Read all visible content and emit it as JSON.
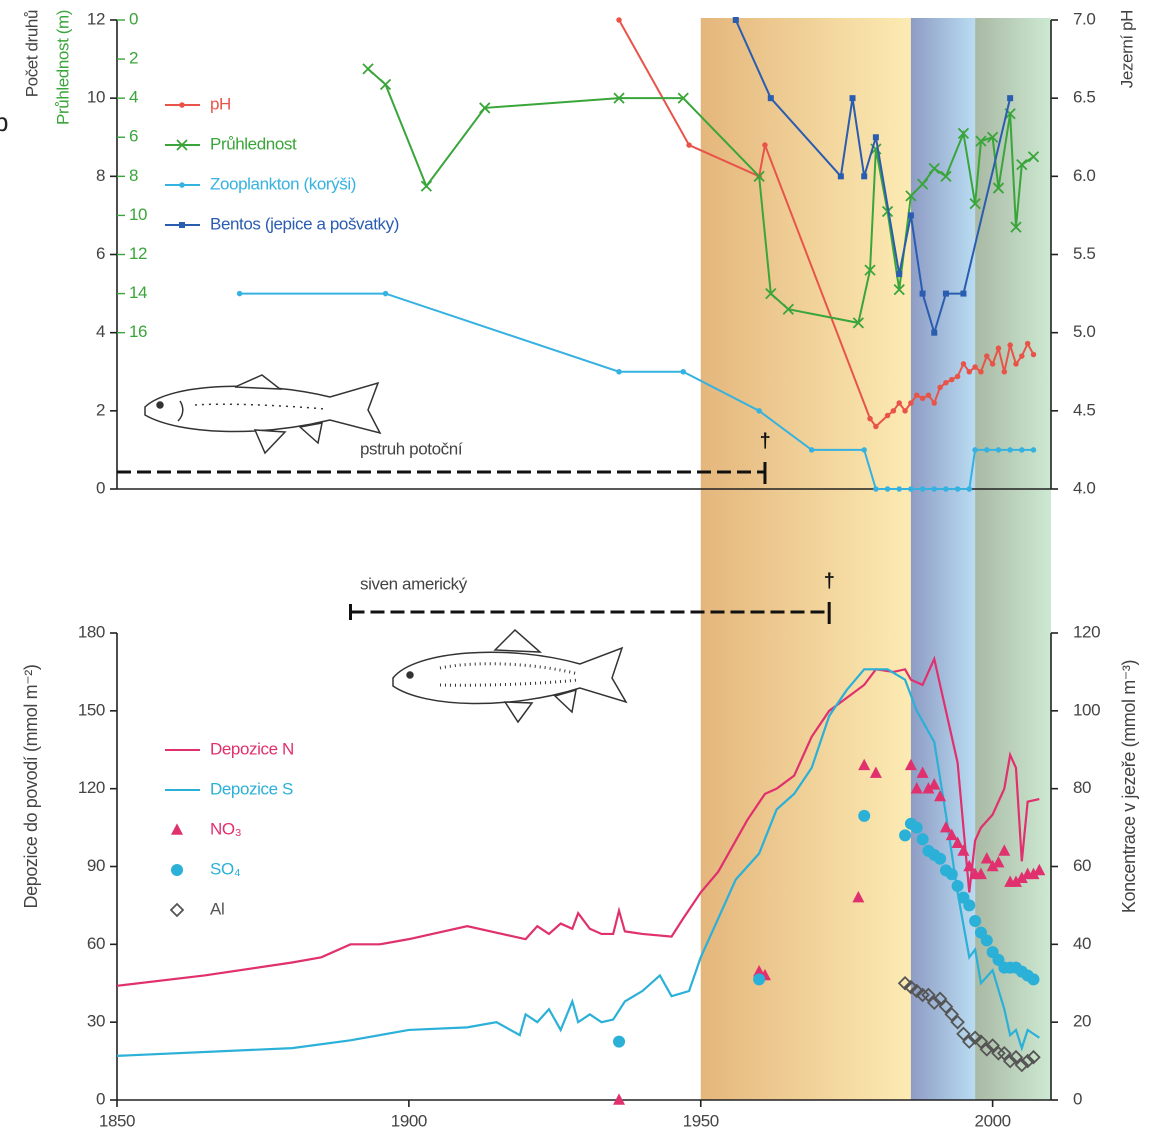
{
  "panel_label": "b",
  "chart_data": [
    {
      "type": "line",
      "xlim": [
        1850,
        2010
      ],
      "ylim": [
        0,
        12
      ],
      "yticks": [
        0,
        2,
        4,
        6,
        8,
        10,
        12
      ],
      "ylabel": "Počet druhů",
      "y3lim": [
        24,
        0
      ],
      "y3ticks": [
        0,
        2,
        4,
        6,
        8,
        10,
        12,
        14,
        16
      ],
      "y3label": "Průhlednost (m)",
      "y3color": "#3aa53a",
      "y2lim": [
        4,
        7
      ],
      "y2ticks": [
        {
          "value": 4,
          "label": "4.0"
        },
        4.5,
        {
          "value": 5,
          "label": "5.0"
        },
        5.5,
        {
          "value": 6,
          "label": "6.0"
        },
        6.5,
        {
          "value": 7,
          "label": "7.0"
        }
      ],
      "y2label": "Jezerní pH",
      "bands": [
        {
          "from": 1950,
          "to": 1986,
          "colors": [
            "#e4b67c",
            "#fcebb3"
          ]
        },
        {
          "from": 1986,
          "to": 1997,
          "colors": [
            "#8e9cc4",
            "#b9dcf2"
          ]
        },
        {
          "from": 1997,
          "to": 2010,
          "colors": [
            "#a9b9a4",
            "#cde9d2"
          ]
        }
      ],
      "annotations": [
        {
          "text": "pstruh potoční",
          "from": 1850,
          "to": 1961,
          "end_mark": "†"
        }
      ],
      "series": [
        {
          "name": "pH",
          "color": "#e8544a",
          "axis": "y2",
          "marker": "dot",
          "line": true,
          "x": [
            1936,
            1948,
            1960,
            1961,
            1979,
            1980,
            1982,
            1983,
            1984,
            1985,
            1986,
            1987,
            1988,
            1989,
            1990,
            1991,
            1992,
            1993,
            1994,
            1995,
            1996,
            1997,
            1998,
            1999,
            2000,
            2001,
            2002,
            2003,
            2004,
            2005,
            2006,
            2007
          ],
          "values": [
            7.0,
            6.2,
            6.0,
            6.2,
            4.45,
            4.4,
            4.47,
            4.5,
            4.55,
            4.5,
            4.55,
            4.6,
            4.58,
            4.6,
            4.55,
            4.65,
            4.68,
            4.7,
            4.72,
            4.8,
            4.75,
            4.78,
            4.75,
            4.85,
            4.8,
            4.9,
            4.75,
            4.92,
            4.8,
            4.85,
            4.93,
            4.86
          ]
        },
        {
          "name": "Průhlednost",
          "color": "#3aa53a",
          "axis": "y3",
          "marker": "x",
          "line": true,
          "x": [
            1893,
            1896,
            1903,
            1913,
            1936,
            1947,
            1960,
            1962,
            1965,
            1977,
            1979,
            1980,
            1982,
            1984,
            1986,
            1988,
            1990,
            1992,
            1995,
            1997,
            1998,
            2000,
            2001,
            2003,
            2004,
            2005,
            2007
          ],
          "values": [
            2.5,
            3.3,
            8.5,
            4.5,
            4.0,
            4.0,
            8.0,
            14.0,
            14.8,
            15.5,
            12.8,
            6.6,
            9.8,
            13.8,
            9.0,
            8.4,
            7.6,
            8.0,
            5.8,
            9.4,
            6.2,
            6.0,
            8.6,
            4.8,
            10.6,
            7.4,
            7.0
          ]
        },
        {
          "name": "Zooplankton (korýši)",
          "color": "#36b2e0",
          "axis": "y",
          "marker": "dot",
          "line": true,
          "x": [
            1871,
            1896,
            1936,
            1947,
            1960,
            1969,
            1978,
            1980,
            1982,
            1984,
            1986,
            1988,
            1990,
            1992,
            1994,
            1996,
            1997,
            1999,
            2001,
            2003,
            2005,
            2007
          ],
          "values": [
            5,
            5,
            3,
            3,
            2,
            1,
            1,
            0,
            0,
            0,
            0,
            0,
            0,
            0,
            0,
            0,
            1,
            1,
            1,
            1,
            1,
            1
          ]
        },
        {
          "name": "Bentos (jepice a pošvatky)",
          "color": "#2a5cb0",
          "axis": "y",
          "marker": "square",
          "line": true,
          "x": [
            1956,
            1962,
            1974,
            1976,
            1978,
            1980,
            1984,
            1986,
            1988,
            1990,
            1992,
            1995,
            2003
          ],
          "values": [
            12,
            10,
            8,
            10,
            8,
            9,
            5.5,
            7,
            5,
            4,
            5,
            5,
            10
          ]
        }
      ]
    },
    {
      "type": "line",
      "xlim": [
        1850,
        2010
      ],
      "xticks": [
        1850,
        1900,
        1950,
        2000
      ],
      "ylim": [
        0,
        180
      ],
      "yticks": [
        0,
        30,
        60,
        90,
        120,
        150,
        180
      ],
      "ylabel": "Depozice do povodí (mmol m⁻²)",
      "y2lim": [
        0,
        120
      ],
      "y2ticks": [
        0,
        20,
        40,
        60,
        80,
        100,
        120
      ],
      "y2label": "Koncentrace v jezeře (mmol m⁻³)",
      "annotations": [
        {
          "text": "siven americký",
          "from": 1890,
          "to": 1972,
          "end_mark": "†"
        }
      ],
      "series": [
        {
          "name": "Depozice N",
          "color": "#e0306e",
          "axis": "y",
          "marker": null,
          "line": true,
          "x": [
            1850,
            1865,
            1880,
            1885,
            1890,
            1895,
            1900,
            1910,
            1920,
            1922,
            1924,
            1926,
            1928,
            1929,
            1931,
            1933,
            1935,
            1936,
            1937,
            1940,
            1945,
            1947,
            1950,
            1953,
            1956,
            1958,
            1961,
            1963,
            1966,
            1969,
            1972,
            1975,
            1978,
            1980,
            1983,
            1985,
            1986,
            1988,
            1990,
            1992,
            1994,
            1995,
            1996,
            1997,
            1998,
            2000,
            2002,
            2003,
            2004,
            2005,
            2006,
            2008
          ],
          "values": [
            44,
            48,
            53,
            55,
            60,
            60,
            62,
            67,
            62,
            67,
            64,
            68,
            66,
            72,
            66,
            64,
            64,
            73,
            65,
            64,
            63,
            70,
            80,
            88,
            100,
            108,
            118,
            120,
            125,
            140,
            150,
            155,
            160,
            166,
            165,
            166,
            162,
            160,
            170,
            150,
            130,
            105,
            80,
            100,
            105,
            110,
            120,
            133,
            128,
            92,
            115,
            116
          ]
        },
        {
          "name": "Depozice S",
          "color": "#2bb0d8",
          "axis": "y",
          "marker": null,
          "line": true,
          "x": [
            1850,
            1880,
            1890,
            1900,
            1910,
            1915,
            1919,
            1920,
            1922,
            1924,
            1926,
            1928,
            1929,
            1931,
            1933,
            1935,
            1937,
            1940,
            1943,
            1945,
            1948,
            1950,
            1953,
            1956,
            1960,
            1963,
            1966,
            1969,
            1972,
            1975,
            1978,
            1982,
            1985,
            1987,
            1990,
            1992,
            1994,
            1996,
            1997,
            1998,
            2000,
            2002,
            2003,
            2004,
            2005,
            2006,
            2008
          ],
          "values": [
            17,
            20,
            23,
            27,
            28,
            30,
            25,
            33,
            30,
            35,
            27,
            38,
            30,
            33,
            30,
            31,
            38,
            42,
            48,
            40,
            42,
            55,
            70,
            85,
            95,
            112,
            118,
            128,
            148,
            158,
            166,
            166,
            162,
            150,
            138,
            110,
            80,
            55,
            58,
            45,
            50,
            35,
            25,
            27,
            20,
            27,
            24
          ]
        },
        {
          "name": "NO₃",
          "color": "#e0306e",
          "axis": "y2",
          "marker": "triangle",
          "line": false,
          "x": [
            1936,
            1960,
            1961,
            1977,
            1978,
            1980,
            1986,
            1987,
            1988,
            1989,
            1990,
            1991,
            1992,
            1993,
            1994,
            1995,
            1996,
            1997,
            1998,
            1999,
            2000,
            2001,
            2002,
            2003,
            2004,
            2005,
            2006,
            2007,
            2008
          ],
          "values": [
            0,
            33,
            32,
            52,
            86,
            84,
            86,
            80,
            84,
            80,
            81,
            78,
            70,
            68,
            66,
            64,
            60,
            58,
            58,
            62,
            60,
            61,
            64,
            56,
            56,
            57,
            58,
            58,
            59
          ]
        },
        {
          "name": "SO₄",
          "color": "#2bb0d8",
          "axis": "y2",
          "marker": "circle",
          "line": false,
          "x": [
            1936,
            1960,
            1978,
            1985,
            1986,
            1987,
            1988,
            1989,
            1990,
            1991,
            1992,
            1993,
            1994,
            1995,
            1996,
            1997,
            1998,
            1999,
            2000,
            2001,
            2002,
            2003,
            2004,
            2005,
            2006,
            2007
          ],
          "values": [
            15,
            31,
            73,
            68,
            71,
            70,
            67,
            64,
            63,
            62,
            59,
            58,
            55,
            52,
            50,
            46,
            43,
            41,
            38,
            36,
            34,
            34,
            34,
            33,
            32,
            31
          ]
        },
        {
          "name": "Al",
          "color": "#555555",
          "axis": "y2",
          "marker": "diamond",
          "line": false,
          "x": [
            1985,
            1986,
            1987,
            1988,
            1989,
            1990,
            1991,
            1992,
            1993,
            1994,
            1995,
            1996,
            1997,
            1998,
            1999,
            2000,
            2001,
            2002,
            2003,
            2004,
            2005,
            2006,
            2007
          ],
          "values": [
            30,
            29,
            28,
            27,
            27,
            25,
            26,
            24,
            22,
            20,
            17,
            15,
            16,
            15,
            13,
            14,
            12,
            12,
            10,
            11,
            9,
            10,
            11
          ]
        }
      ]
    }
  ]
}
